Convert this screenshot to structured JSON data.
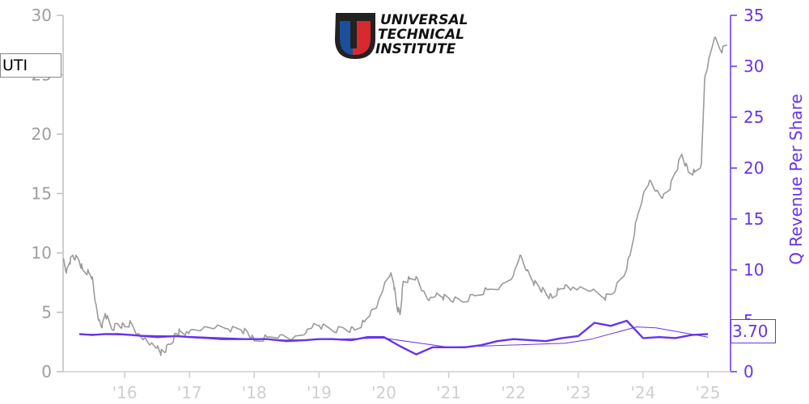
{
  "logo": {
    "line1": "UNIVERSAL",
    "line2": "TECHNICAL",
    "line3": "INSTITUTE",
    "primary_color": "#1a4f9c",
    "secondary_color": "#d8292f"
  },
  "ticker": "UTI",
  "last_value_label": "3.70",
  "colors": {
    "price": "#9a9a9a",
    "revenue": "#6633ee",
    "trend": "#6633ee",
    "left_axis": "#9e9e9e",
    "right_axis": "#6633ee",
    "x_axis": "#cfcfcf"
  },
  "chart_data": {
    "type": "line",
    "xlabel": "",
    "ylabel_left": "",
    "ylabel_right": "Q Revenue Per Share",
    "x_ticks": [
      "'16",
      "'17",
      "'18",
      "'19",
      "'20",
      "'21",
      "'22",
      "'23",
      "'24",
      "'25"
    ],
    "x_tick_years": [
      2016,
      2017,
      2018,
      2019,
      2020,
      2021,
      2022,
      2023,
      2024,
      2025
    ],
    "xlim": [
      2015.05,
      2025.35
    ],
    "y_left_ticks": [
      0,
      5,
      10,
      15,
      20,
      25,
      30
    ],
    "y_left_lim": [
      0,
      30
    ],
    "y_right_ticks": [
      0,
      5,
      10,
      15,
      20,
      25,
      30,
      35
    ],
    "y_right_lim": [
      0,
      35
    ],
    "grid": false,
    "legend": "none",
    "series": [
      {
        "axis": "left",
        "style": "price",
        "x": [
          2015.05,
          2015.1,
          2015.15,
          2015.2,
          2015.3,
          2015.35,
          2015.45,
          2015.5,
          2015.55,
          2015.6,
          2015.65,
          2015.7,
          2015.8,
          2015.9,
          2016.0,
          2016.1,
          2016.2,
          2016.3,
          2016.4,
          2016.5,
          2016.55,
          2016.6,
          2016.7,
          2016.8,
          2016.85,
          2016.95,
          2017.0,
          2017.2,
          2017.4,
          2017.6,
          2017.8,
          2017.9,
          2018.0,
          2018.2,
          2018.4,
          2018.6,
          2018.8,
          2018.9,
          2019.0,
          2019.2,
          2019.4,
          2019.55,
          2019.7,
          2019.8,
          2019.9,
          2020.0,
          2020.1,
          2020.15,
          2020.2,
          2020.25,
          2020.3,
          2020.4,
          2020.5,
          2020.6,
          2020.7,
          2020.8,
          2020.9,
          2021.0,
          2021.2,
          2021.4,
          2021.6,
          2021.8,
          2022.0,
          2022.1,
          2022.2,
          2022.3,
          2022.4,
          2022.5,
          2022.6,
          2022.7,
          2022.8,
          2022.9,
          2023.0,
          2023.2,
          2023.4,
          2023.5,
          2023.7,
          2023.8,
          2023.9,
          2024.0,
          2024.1,
          2024.2,
          2024.3,
          2024.4,
          2024.5,
          2024.6,
          2024.7,
          2024.8,
          2024.9,
          2024.95,
          2025.0,
          2025.1,
          2025.2,
          2025.3
        ],
        "y": [
          9.5,
          8.3,
          9.2,
          9.8,
          9.3,
          8.6,
          8.3,
          8.0,
          5.8,
          4.3,
          3.7,
          4.9,
          3.6,
          4.0,
          3.8,
          4.1,
          3.2,
          2.8,
          2.3,
          2.0,
          1.6,
          1.7,
          2.3,
          3.2,
          3.4,
          3.3,
          3.4,
          3.6,
          3.7,
          3.6,
          3.5,
          3.3,
          2.6,
          2.9,
          3.1,
          2.8,
          3.3,
          3.8,
          3.9,
          3.5,
          3.6,
          3.5,
          4.2,
          5.1,
          5.6,
          7.2,
          8.2,
          7.5,
          5.5,
          4.8,
          7.6,
          7.8,
          8.0,
          6.8,
          6.0,
          6.4,
          6.3,
          6.2,
          5.9,
          6.4,
          6.9,
          7.2,
          8.1,
          9.8,
          8.5,
          7.6,
          7.1,
          6.6,
          6.2,
          6.9,
          7.3,
          7.0,
          7.0,
          6.8,
          6.2,
          6.5,
          8.0,
          9.8,
          12.8,
          14.9,
          16.1,
          15.2,
          14.6,
          15.3,
          16.8,
          18.3,
          16.8,
          16.8,
          17.5,
          24.6,
          25.8,
          28.1,
          27.0,
          27.5
        ]
      },
      {
        "axis": "right",
        "style": "revenue",
        "x": [
          2015.3,
          2015.5,
          2015.7,
          2015.9,
          2016.1,
          2016.3,
          2016.5,
          2016.8,
          2017.0,
          2017.3,
          2017.5,
          2017.8,
          2018.0,
          2018.2,
          2018.5,
          2018.8,
          2019.0,
          2019.2,
          2019.5,
          2019.75,
          2020.0,
          2020.25,
          2020.5,
          2020.75,
          2021.0,
          2021.25,
          2021.5,
          2021.75,
          2022.0,
          2022.25,
          2022.5,
          2022.75,
          2023.0,
          2023.25,
          2023.5,
          2023.75,
          2024.0,
          2024.25,
          2024.5,
          2024.75,
          2025.0
        ],
        "y": [
          3.7,
          3.6,
          3.7,
          3.7,
          3.6,
          3.5,
          3.4,
          3.5,
          3.4,
          3.3,
          3.2,
          3.2,
          3.2,
          3.2,
          3.0,
          3.1,
          3.2,
          3.2,
          3.1,
          3.4,
          3.4,
          2.5,
          1.7,
          2.4,
          2.4,
          2.4,
          2.6,
          3.0,
          3.2,
          3.1,
          3.0,
          3.3,
          3.5,
          4.8,
          4.5,
          5.0,
          3.3,
          3.4,
          3.3,
          3.6,
          3.7
        ]
      },
      {
        "axis": "right",
        "style": "trend",
        "x": [
          2015.3,
          2016.8,
          2018.5,
          2020.0,
          2021.0,
          2022.8,
          2023.2,
          2023.9,
          2024.2,
          2025.0
        ],
        "y": [
          3.7,
          3.5,
          3.1,
          3.3,
          2.4,
          2.8,
          3.2,
          4.4,
          4.3,
          3.4
        ]
      }
    ]
  }
}
